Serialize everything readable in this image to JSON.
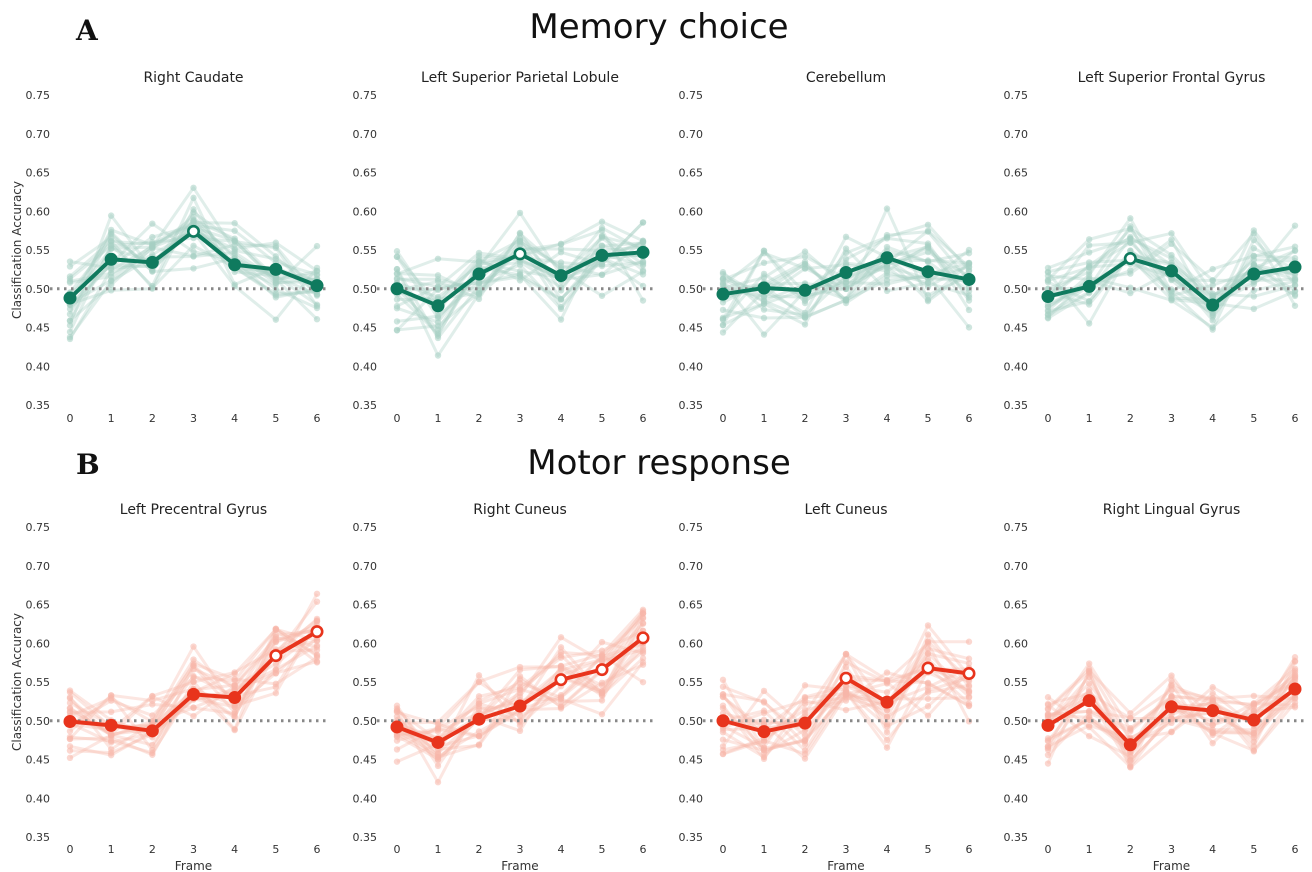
{
  "figure": {
    "sections": [
      {
        "letter": "A",
        "title": "Memory choice",
        "color": "#0f7a5e",
        "subject_color": "#a6cfc2",
        "panels": [
          {
            "title": "Right Caudate"
          },
          {
            "title": "Left Superior Parietal Lobule"
          },
          {
            "title": "Cerebellum"
          },
          {
            "title": "Left Superior Frontal Gyrus"
          }
        ]
      },
      {
        "letter": "B",
        "title": "Motor response",
        "color": "#e8341c",
        "subject_color": "#f7b6aa",
        "panels": [
          {
            "title": "Left Precentral Gyrus"
          },
          {
            "title": "Right Cuneus"
          },
          {
            "title": "Left Cuneus"
          },
          {
            "title": "Right Lingual Gyrus"
          }
        ]
      }
    ],
    "ylabel": "Classification Accuracy",
    "xlabel": "Frame",
    "chance_level": 0.5,
    "chance_line_color": "#888888"
  },
  "chart_data": [
    {
      "type": "line",
      "section": "A",
      "title": "Right Caudate",
      "x": [
        0,
        1,
        2,
        3,
        4,
        5,
        6
      ],
      "ylim": [
        0.35,
        0.75
      ],
      "yticks": [
        0.35,
        0.4,
        0.45,
        0.5,
        0.55,
        0.6,
        0.65,
        0.7,
        0.75
      ],
      "mean": [
        0.488,
        0.538,
        0.534,
        0.574,
        0.531,
        0.525,
        0.504
      ],
      "highlighted_frames": [
        3
      ]
    },
    {
      "type": "line",
      "section": "A",
      "title": "Left Superior Parietal Lobule",
      "x": [
        0,
        1,
        2,
        3,
        4,
        5,
        6
      ],
      "ylim": [
        0.35,
        0.75
      ],
      "yticks": [
        0.35,
        0.4,
        0.45,
        0.5,
        0.55,
        0.6,
        0.65,
        0.7,
        0.75
      ],
      "mean": [
        0.5,
        0.478,
        0.519,
        0.545,
        0.517,
        0.543,
        0.547
      ],
      "highlighted_frames": [
        3
      ]
    },
    {
      "type": "line",
      "section": "A",
      "title": "Cerebellum",
      "x": [
        0,
        1,
        2,
        3,
        4,
        5,
        6
      ],
      "ylim": [
        0.35,
        0.75
      ],
      "yticks": [
        0.35,
        0.4,
        0.45,
        0.5,
        0.55,
        0.6,
        0.65,
        0.7,
        0.75
      ],
      "mean": [
        0.493,
        0.501,
        0.498,
        0.521,
        0.54,
        0.522,
        0.512
      ],
      "highlighted_frames": []
    },
    {
      "type": "line",
      "section": "A",
      "title": "Left Superior Frontal Gyrus",
      "x": [
        0,
        1,
        2,
        3,
        4,
        5,
        6
      ],
      "ylim": [
        0.35,
        0.75
      ],
      "yticks": [
        0.35,
        0.4,
        0.45,
        0.5,
        0.55,
        0.6,
        0.65,
        0.7,
        0.75
      ],
      "mean": [
        0.49,
        0.503,
        0.539,
        0.523,
        0.479,
        0.519,
        0.528
      ],
      "highlighted_frames": [
        2
      ]
    },
    {
      "type": "line",
      "section": "B",
      "title": "Left Precentral Gyrus",
      "x": [
        0,
        1,
        2,
        3,
        4,
        5,
        6
      ],
      "ylim": [
        0.35,
        0.75
      ],
      "yticks": [
        0.35,
        0.4,
        0.45,
        0.5,
        0.55,
        0.6,
        0.65,
        0.7,
        0.75
      ],
      "mean": [
        0.499,
        0.494,
        0.487,
        0.534,
        0.53,
        0.584,
        0.615
      ],
      "highlighted_frames": [
        5,
        6
      ]
    },
    {
      "type": "line",
      "section": "B",
      "title": "Right Cuneus",
      "x": [
        0,
        1,
        2,
        3,
        4,
        5,
        6
      ],
      "ylim": [
        0.35,
        0.75
      ],
      "yticks": [
        0.35,
        0.4,
        0.45,
        0.5,
        0.55,
        0.6,
        0.65,
        0.7,
        0.75
      ],
      "mean": [
        0.492,
        0.472,
        0.502,
        0.519,
        0.553,
        0.566,
        0.607
      ],
      "highlighted_frames": [
        4,
        5,
        6
      ]
    },
    {
      "type": "line",
      "section": "B",
      "title": "Left Cuneus",
      "x": [
        0,
        1,
        2,
        3,
        4,
        5,
        6
      ],
      "ylim": [
        0.35,
        0.75
      ],
      "yticks": [
        0.35,
        0.4,
        0.45,
        0.5,
        0.55,
        0.6,
        0.65,
        0.7,
        0.75
      ],
      "mean": [
        0.5,
        0.486,
        0.497,
        0.555,
        0.524,
        0.568,
        0.561
      ],
      "highlighted_frames": [
        3,
        5,
        6
      ]
    },
    {
      "type": "line",
      "section": "B",
      "title": "Right Lingual Gyrus",
      "x": [
        0,
        1,
        2,
        3,
        4,
        5,
        6
      ],
      "ylim": [
        0.35,
        0.75
      ],
      "yticks": [
        0.35,
        0.4,
        0.45,
        0.5,
        0.55,
        0.6,
        0.65,
        0.7,
        0.75
      ],
      "mean": [
        0.494,
        0.526,
        0.469,
        0.518,
        0.513,
        0.501,
        0.541
      ],
      "highlighted_frames": []
    }
  ]
}
